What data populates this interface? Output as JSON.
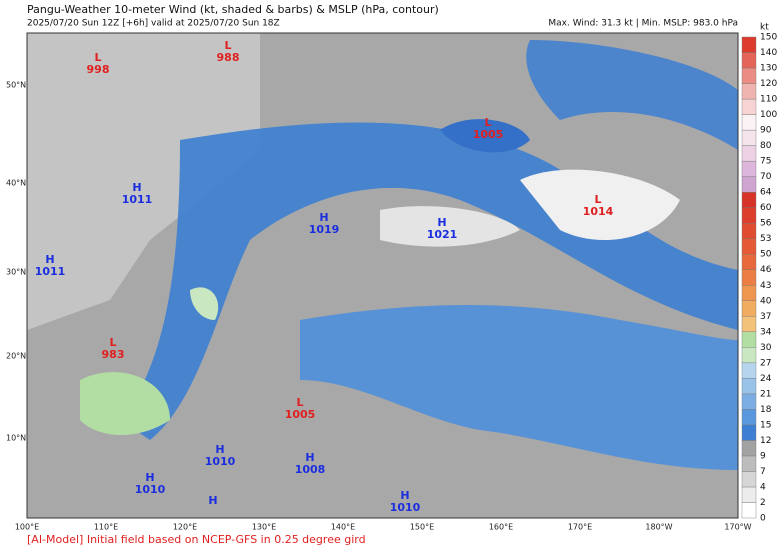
{
  "header": {
    "title": "Pangu-Weather 10-meter Wind (kt, shaded & barbs) & MSLP (hPa, contour)",
    "subtitle": "2025/07/20 Sun 12Z [+6h] valid at 2025/07/20 Sun 18Z",
    "stats": "Max. Wind: 31.3 kt | Min. MSLP: 983.0 hPa"
  },
  "centers": [
    {
      "kind": "L",
      "value": "998"
    },
    {
      "kind": "L",
      "value": "988"
    },
    {
      "kind": "L",
      "value": "1005"
    },
    {
      "kind": "L",
      "value": "1014"
    },
    {
      "kind": "H",
      "value": "1011"
    },
    {
      "kind": "H",
      "value": "1019"
    },
    {
      "kind": "H",
      "value": "1021"
    },
    {
      "kind": "H",
      "value": "1011"
    },
    {
      "kind": "L",
      "value": "983"
    },
    {
      "kind": "L",
      "value": "1005"
    },
    {
      "kind": "H",
      "value": "1010"
    },
    {
      "kind": "H",
      "value": "1008"
    },
    {
      "kind": "H",
      "value": "1010"
    },
    {
      "kind": "H",
      "value": "1010"
    },
    {
      "kind": "H"
    }
  ],
  "lat_labels": [
    "50°N",
    "40°N",
    "30°N",
    "20°N",
    "10°N"
  ],
  "lon_labels": [
    "100°E",
    "110°E",
    "120°E",
    "130°E",
    "140°E",
    "150°E",
    "160°E",
    "170°E",
    "180°W",
    "170°W"
  ],
  "colorbar": {
    "unit": "kt",
    "levels": [
      0,
      2,
      4,
      7,
      9,
      12,
      15,
      18,
      21,
      24,
      27,
      30,
      34,
      37,
      40,
      43,
      46,
      50,
      53,
      56,
      60,
      64,
      70,
      75,
      80,
      90,
      100,
      110,
      120,
      130,
      140,
      150
    ],
    "colors": [
      "#ffffff",
      "#ececec",
      "#d6d6d6",
      "#bcbcbc",
      "#a2a2a2",
      "#3d7fd2",
      "#5a98dd",
      "#7caee4",
      "#9ac3ea",
      "#b5d5ee",
      "#c9e8c2",
      "#b3dea3",
      "#f2c27a",
      "#f0ac60",
      "#ee9650",
      "#ec7e44",
      "#e86a3c",
      "#e45a34",
      "#e04c30",
      "#dc402c",
      "#d63428",
      "#cfa4d0",
      "#ddb6dc",
      "#ecd2e4",
      "#f6e4ec",
      "#fbf2f5",
      "#f7d4d4",
      "#f0b4b0",
      "#ea8c84",
      "#e46458",
      "#dc3a2c"
    ]
  },
  "footer": "[AI-Model] Initial field based on NCEP-GFS in 0.25 degree gird"
}
